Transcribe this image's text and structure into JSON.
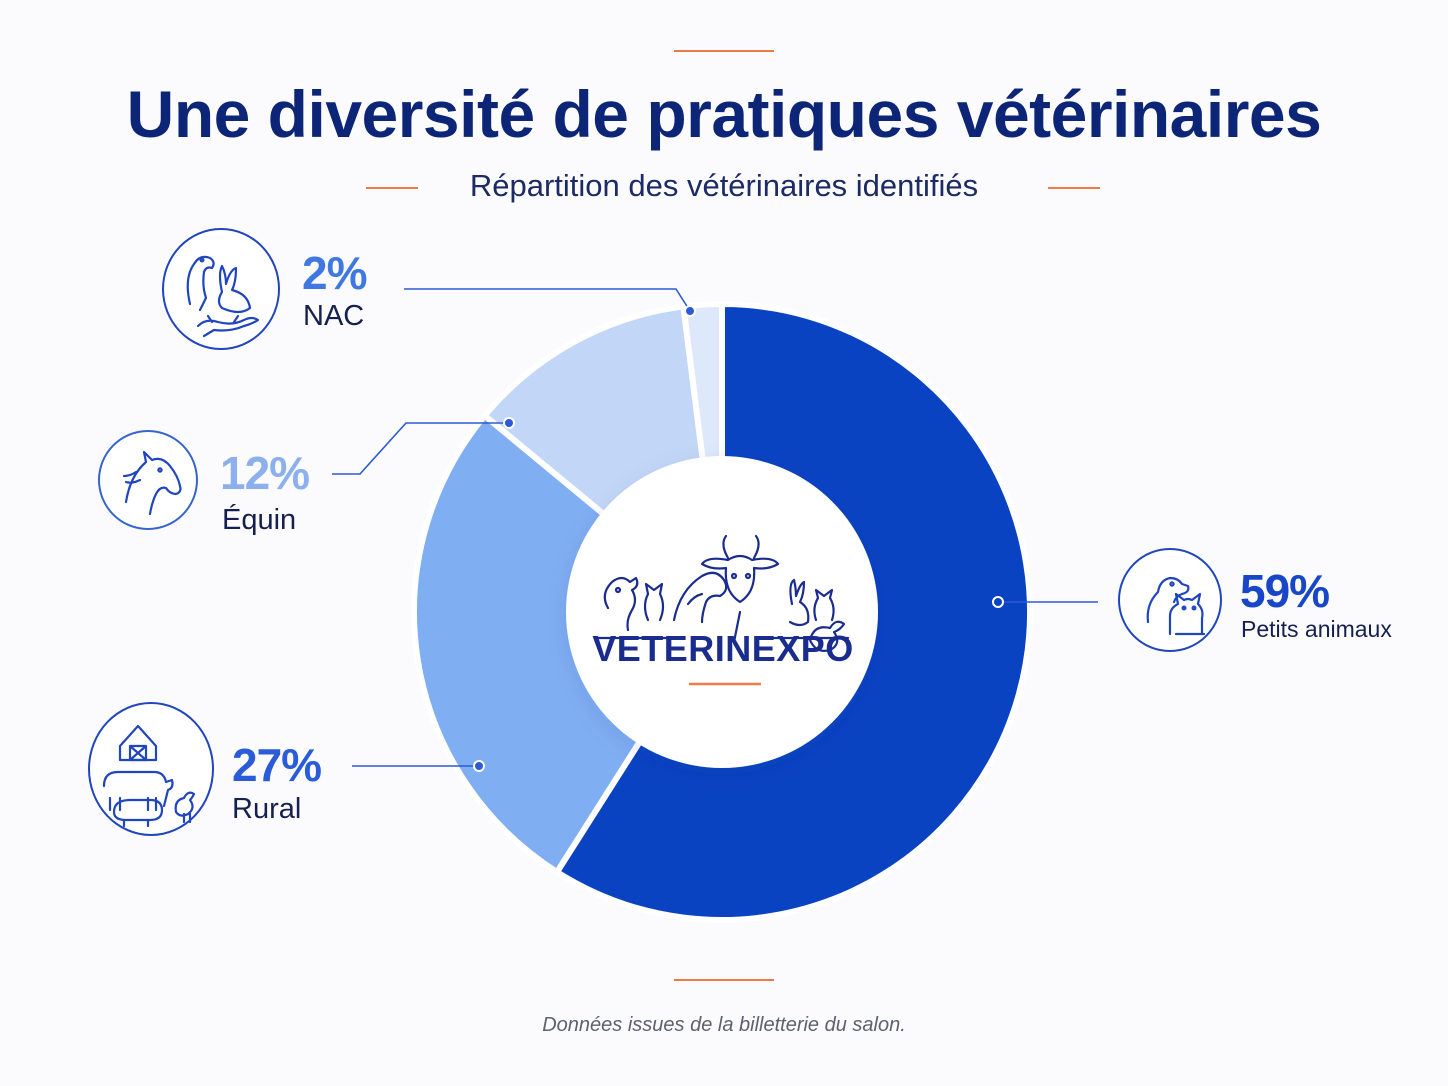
{
  "header": {
    "title": "Une diversité de pratiques vétérinaires",
    "subtitle": "Répartition des vétérinaires identifiés"
  },
  "chart_data": {
    "type": "pie",
    "style": "donut",
    "title": "Une diversité de pratiques vétérinaires",
    "subtitle": "Répartition des vétérinaires identifiés",
    "segments": [
      {
        "label": "Petits animaux",
        "value": 59,
        "display": "59%",
        "color": "#0a43c2",
        "label_color": "#1846c8",
        "icon": "dog-cat-icon"
      },
      {
        "label": "Rural",
        "value": 27,
        "display": "27%",
        "color": "#80aef2",
        "label_color": "#2a5bd9",
        "icon": "farm-icon"
      },
      {
        "label": "Équin",
        "value": 12,
        "display": "12%",
        "color": "#c2d7f7",
        "label_color": "#8cb0ee",
        "icon": "horse-icon"
      },
      {
        "label": "NAC",
        "value": 2,
        "display": "2%",
        "color": "#dde8fa",
        "label_color": "#3f78e0",
        "icon": "parrot-rabbit-lizard-icon"
      }
    ],
    "center_label": "VETERINEXPO",
    "source": "Données issues de la billetterie du salon."
  },
  "accent_color": "#ee7a45",
  "title_color": "#0c2577"
}
